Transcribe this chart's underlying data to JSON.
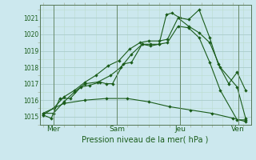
{
  "title": "",
  "xlabel": "Pression niveau de la mer( hPa )",
  "bg_color": "#cce8ee",
  "line_color": "#1a5c1a",
  "grid_major_color": "#aacccc",
  "grid_minor_color": "#bbddcc",
  "ylim": [
    1014.5,
    1021.8
  ],
  "yticks": [
    1015,
    1016,
    1017,
    1018,
    1019,
    1020,
    1021
  ],
  "day_labels": [
    "Mer",
    "Sam",
    "Jeu",
    "Ven"
  ],
  "day_positions": [
    0.5,
    3.5,
    6.5,
    9.25
  ],
  "series1": {
    "x": [
      0.0,
      0.4,
      0.8,
      1.3,
      1.8,
      2.2,
      2.7,
      3.0,
      3.3,
      3.8,
      4.2,
      4.7,
      5.1,
      5.5,
      5.85,
      6.1,
      6.5,
      6.9,
      7.4,
      7.9,
      8.3,
      8.8,
      9.2,
      9.6
    ],
    "y": [
      1015.1,
      1014.9,
      1016.1,
      1016.1,
      1016.8,
      1016.9,
      1017.1,
      1017.0,
      1017.0,
      1018.2,
      1018.3,
      1019.4,
      1019.3,
      1019.4,
      1021.2,
      1021.3,
      1021.0,
      1020.9,
      1021.5,
      1019.8,
      1018.2,
      1017.0,
      1017.7,
      1016.6
    ]
  },
  "series2": {
    "x": [
      0.0,
      0.5,
      1.0,
      1.5,
      2.0,
      2.6,
      3.2,
      3.7,
      4.2,
      4.7,
      5.1,
      5.5,
      5.9,
      6.4,
      6.9,
      7.4,
      7.9,
      8.4,
      9.2,
      9.6
    ],
    "y": [
      1015.2,
      1015.2,
      1015.9,
      1016.5,
      1017.0,
      1017.1,
      1017.5,
      1018.0,
      1018.8,
      1019.4,
      1019.4,
      1019.4,
      1019.5,
      1020.5,
      1020.4,
      1019.8,
      1018.3,
      1016.6,
      1014.8,
      1014.8
    ]
  },
  "series3": {
    "x": [
      0.0,
      0.5,
      1.0,
      1.5,
      2.0,
      2.5,
      3.1,
      3.6,
      4.1,
      4.6,
      5.0,
      5.5,
      5.9,
      6.4,
      6.9,
      7.4,
      7.9,
      8.4,
      9.2,
      9.6
    ],
    "y": [
      1015.1,
      1015.5,
      1016.2,
      1016.6,
      1017.1,
      1017.5,
      1018.1,
      1018.4,
      1019.1,
      1019.5,
      1019.6,
      1019.6,
      1019.7,
      1021.0,
      1020.5,
      1020.1,
      1019.5,
      1018.0,
      1016.8,
      1014.9
    ]
  },
  "series4": {
    "x": [
      0.0,
      1.0,
      2.0,
      3.0,
      4.0,
      5.0,
      6.0,
      7.0,
      8.0,
      9.0,
      9.6
    ],
    "y": [
      1015.2,
      1015.8,
      1016.0,
      1016.1,
      1016.1,
      1015.9,
      1015.6,
      1015.4,
      1015.2,
      1014.9,
      1014.7
    ]
  },
  "vline_positions": [
    0.5,
    3.5,
    6.5,
    9.25
  ],
  "xlim": [
    -0.15,
    9.85
  ]
}
